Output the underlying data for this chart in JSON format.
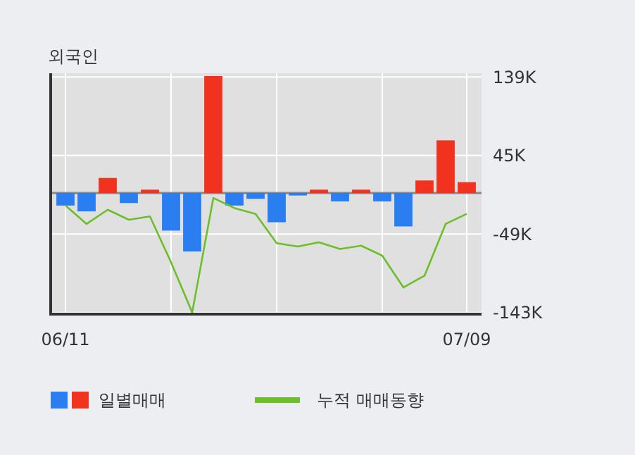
{
  "chart_data": {
    "type": "bar",
    "title": "외국인",
    "categories": [
      "06/11",
      null,
      null,
      null,
      null,
      null,
      null,
      null,
      null,
      null,
      null,
      null,
      null,
      null,
      null,
      null,
      null,
      null,
      null,
      "07/09"
    ],
    "series": [
      {
        "name": "일별매매",
        "colors": [
          "#2a7ef0",
          "#2a7ef0",
          "#f0321e",
          "#2a7ef0",
          "#f0321e",
          "#2a7ef0",
          "#2a7ef0",
          "#f0321e",
          "#2a7ef0",
          "#2a7ef0",
          "#2a7ef0",
          "#2a7ef0",
          "#f0321e",
          "#2a7ef0",
          "#f0321e",
          "#2a7ef0",
          "#2a7ef0",
          "#f0321e",
          "#f0321e",
          "#f0321e"
        ],
        "values": [
          -15,
          -22,
          18,
          -12,
          4,
          -45,
          -70,
          140,
          -15,
          -7,
          -35,
          -3,
          4,
          -10,
          4,
          -10,
          -40,
          15,
          63,
          13
        ]
      },
      {
        "name": "누적 매매동향",
        "type": "line",
        "color": "#6cbf2a",
        "values": [
          -15,
          -37,
          -20,
          -32,
          -28,
          -83,
          -143,
          -6,
          -18,
          -25,
          -60,
          -64,
          -59,
          -67,
          -63,
          -75,
          -113,
          -99,
          -37,
          -25
        ]
      }
    ],
    "ylim": [
      -145,
      140
    ],
    "yticks": [
      {
        "value": 139,
        "label": "139K"
      },
      {
        "value": 45,
        "label": "45K"
      },
      {
        "value": -49,
        "label": "-49K"
      },
      {
        "value": -143,
        "label": "-143K"
      }
    ],
    "grid": true,
    "legend": "bottom"
  }
}
